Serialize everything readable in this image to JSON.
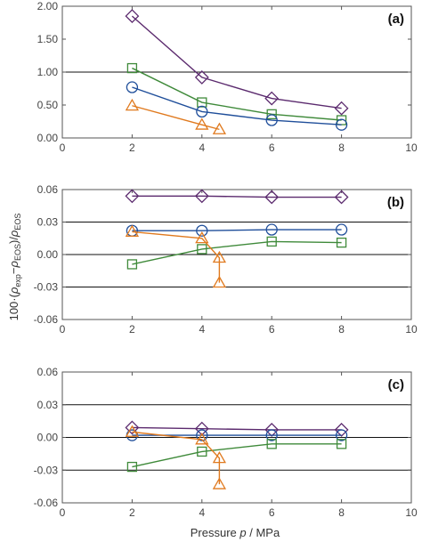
{
  "figure": {
    "ylabel_parts": {
      "prefix": "100·(",
      "rho1": "ρ",
      "sub1": "exp",
      "minus": "−",
      "rho2": "ρ",
      "sub2": "EOS",
      "close": ")/",
      "rho3": "ρ",
      "sub3": "EOS"
    },
    "xlabel_parts": {
      "before": "Pressure ",
      "italic": "p",
      "after": " / MPa"
    }
  },
  "series_colors": {
    "purple_diamond": "#5b2a6e",
    "blue_circle": "#1f4e9a",
    "green_square": "#3f8a3a",
    "orange_triangle": "#e07a1f"
  },
  "chart_data": [
    {
      "type": "line",
      "panel_label": "(a)",
      "xlim": [
        0,
        10
      ],
      "ylim": [
        0,
        2
      ],
      "xticks": [
        "0",
        "2",
        "4",
        "6",
        "8",
        "10"
      ],
      "yticks": [
        "0.00",
        "0.50",
        "1.00",
        "1.50",
        "2.00"
      ],
      "ytick_values": [
        0,
        0.5,
        1.0,
        1.5,
        2.0
      ],
      "grid_lines": [
        1.0
      ],
      "series": [
        {
          "marker": "diamond",
          "color_key": "purple_diamond",
          "x": [
            2,
            4,
            6,
            8
          ],
          "y": [
            1.85,
            0.92,
            0.6,
            0.45
          ]
        },
        {
          "marker": "square",
          "color_key": "green_square",
          "x": [
            2,
            4,
            6,
            8
          ],
          "y": [
            1.06,
            0.54,
            0.36,
            0.27
          ]
        },
        {
          "marker": "circle",
          "color_key": "blue_circle",
          "x": [
            2,
            4,
            6,
            8
          ],
          "y": [
            0.77,
            0.4,
            0.27,
            0.2
          ]
        },
        {
          "marker": "triangle",
          "color_key": "orange_triangle",
          "x": [
            2,
            4,
            4.5
          ],
          "y": [
            0.49,
            0.2,
            0.13
          ]
        }
      ]
    },
    {
      "type": "line",
      "panel_label": "(b)",
      "xlim": [
        0,
        10
      ],
      "ylim": [
        -0.06,
        0.06
      ],
      "xticks": [
        "0",
        "2",
        "4",
        "6",
        "8",
        "10"
      ],
      "yticks": [
        "-0.06",
        "-0.03",
        "0.00",
        "0.03",
        "0.06"
      ],
      "ytick_values": [
        -0.06,
        -0.03,
        0.0,
        0.03,
        0.06
      ],
      "grid_lines": [
        0.03,
        0.0,
        -0.03
      ],
      "series": [
        {
          "marker": "diamond",
          "color_key": "purple_diamond",
          "x": [
            2,
            4,
            6,
            8
          ],
          "y": [
            0.054,
            0.054,
            0.053,
            0.053
          ]
        },
        {
          "marker": "circle",
          "color_key": "blue_circle",
          "x": [
            2,
            4,
            6,
            8
          ],
          "y": [
            0.022,
            0.022,
            0.023,
            0.023
          ]
        },
        {
          "marker": "square",
          "color_key": "green_square",
          "x": [
            2,
            4,
            6,
            8
          ],
          "y": [
            -0.009,
            0.005,
            0.012,
            0.011
          ]
        },
        {
          "marker": "triangle",
          "color_key": "orange_triangle",
          "x": [
            2,
            4,
            4.5,
            4.5
          ],
          "y": [
            0.021,
            0.015,
            -0.003,
            -0.026
          ]
        }
      ]
    },
    {
      "type": "line",
      "panel_label": "(c)",
      "xlim": [
        0,
        10
      ],
      "ylim": [
        -0.06,
        0.06
      ],
      "xticks": [
        "0",
        "2",
        "4",
        "6",
        "8",
        "10"
      ],
      "yticks": [
        "-0.06",
        "-0.03",
        "0.00",
        "0.03",
        "0.06"
      ],
      "ytick_values": [
        -0.06,
        -0.03,
        0.0,
        0.03,
        0.06
      ],
      "grid_lines": [
        0.03,
        0.0,
        -0.03
      ],
      "series": [
        {
          "marker": "diamond",
          "color_key": "purple_diamond",
          "x": [
            2,
            4,
            6,
            8
          ],
          "y": [
            0.009,
            0.008,
            0.007,
            0.007
          ]
        },
        {
          "marker": "circle",
          "color_key": "blue_circle",
          "x": [
            2,
            4,
            6,
            8
          ],
          "y": [
            0.002,
            0.002,
            0.002,
            0.002
          ]
        },
        {
          "marker": "square",
          "color_key": "green_square",
          "x": [
            2,
            4,
            6,
            8
          ],
          "y": [
            -0.027,
            -0.013,
            -0.006,
            -0.006
          ]
        },
        {
          "marker": "triangle",
          "color_key": "orange_triangle",
          "x": [
            2,
            4,
            4.5,
            4.5
          ],
          "y": [
            0.005,
            -0.002,
            -0.019,
            -0.043
          ]
        }
      ]
    }
  ]
}
